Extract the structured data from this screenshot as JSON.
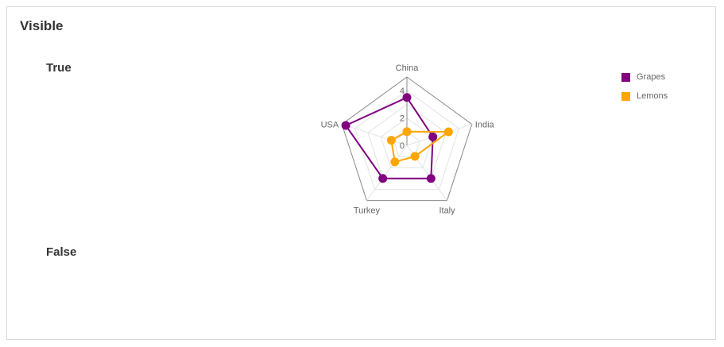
{
  "panel": {
    "title": "Visible",
    "true_label": "True",
    "false_label": "False"
  },
  "chart_data": {
    "type": "radar",
    "categories": [
      "China",
      "India",
      "Italy",
      "Turkey",
      "USA"
    ],
    "series": [
      {
        "name": "Grapes",
        "color": "#800080",
        "values": [
          3.5,
          2,
          3,
          3,
          4.7
        ]
      },
      {
        "name": "Lemons",
        "color": "#FFA500",
        "values": [
          1,
          3.2,
          1,
          1.5,
          1.2
        ]
      }
    ],
    "radial_ticks": [
      {
        "value": 0,
        "label": "0"
      },
      {
        "value": 2,
        "label": "2"
      },
      {
        "value": 4,
        "label": "4"
      }
    ],
    "ylim": [
      0,
      5
    ],
    "legend_position": "top-right",
    "grid": true
  }
}
